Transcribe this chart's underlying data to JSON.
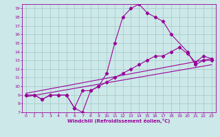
{
  "xlabel": "Windchill (Refroidissement éolien,°C)",
  "bg_color": "#cce8e8",
  "line_color": "#990099",
  "grid_color": "#aacccc",
  "xlim": [
    -0.5,
    23.5
  ],
  "ylim": [
    7,
    19.5
  ],
  "xticks": [
    0,
    1,
    2,
    3,
    4,
    5,
    6,
    7,
    8,
    9,
    10,
    11,
    12,
    13,
    14,
    15,
    16,
    17,
    18,
    19,
    20,
    21,
    22,
    23
  ],
  "yticks": [
    7,
    8,
    9,
    10,
    11,
    12,
    13,
    14,
    15,
    16,
    17,
    18,
    19
  ],
  "series1_x": [
    0,
    1,
    2,
    3,
    4,
    5,
    6,
    7,
    8,
    9,
    10,
    11,
    12,
    13,
    14,
    15,
    16,
    17,
    18,
    20,
    21,
    22,
    23
  ],
  "series1_y": [
    9,
    9,
    8.5,
    9,
    9,
    9,
    7.5,
    7,
    9.5,
    10,
    11.5,
    15,
    18,
    19,
    19.5,
    18.5,
    18,
    17.5,
    16,
    14,
    12.5,
    13,
    13
  ],
  "series2_x": [
    0,
    1,
    2,
    3,
    4,
    5,
    6,
    7,
    8,
    9,
    10,
    11,
    12,
    13,
    14,
    15,
    16,
    17,
    18,
    19,
    20,
    21,
    22,
    23
  ],
  "series2_y": [
    9,
    9,
    8.5,
    9,
    9,
    9,
    7.5,
    9.5,
    9.5,
    10,
    10.5,
    11,
    11.5,
    12,
    12.5,
    13,
    13.5,
    13.5,
    14,
    14.5,
    13.8,
    12.8,
    13.5,
    13.2
  ],
  "regline1_x": [
    0,
    23
  ],
  "regline1_y": [
    9.2,
    13.2
  ],
  "regline2_x": [
    0,
    23
  ],
  "regline2_y": [
    8.8,
    12.5
  ]
}
